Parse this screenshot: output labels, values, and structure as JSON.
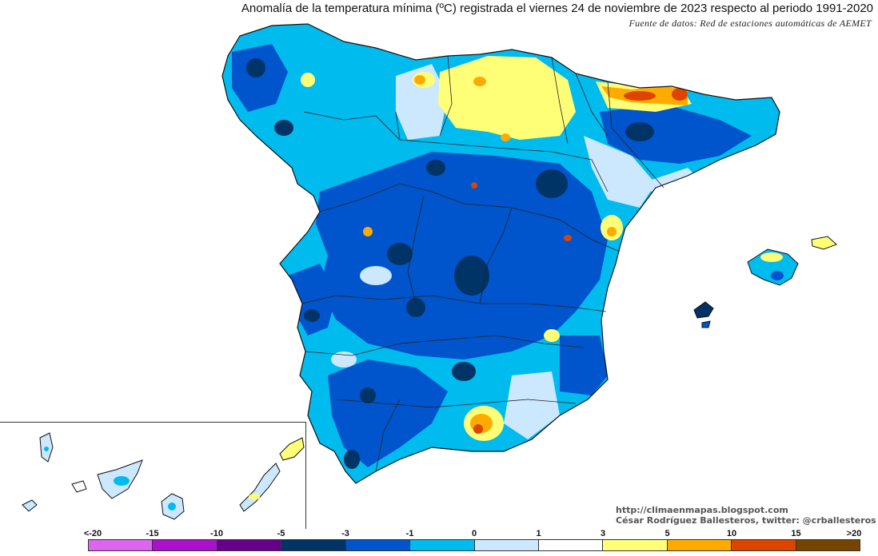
{
  "title": "Anomalía de la temperatura mínima (ºC) registrada el viernes 24 de noviembre de 2023 respecto al periodo 1991-2020",
  "subtitle": "Fuente de datos: Red de estaciones automáticas de AEMET",
  "credits": {
    "url": "http://climaenmapas.blogspot.com",
    "author": "César Rodríguez Ballesteros, twitter: @crballesteros"
  },
  "legend": {
    "labels": [
      "<-20",
      "-15",
      "-10",
      "-5",
      "-3",
      "-1",
      "0",
      "1",
      "3",
      "5",
      "10",
      "15",
      ">20"
    ],
    "colors": [
      "#dd66ee",
      "#aa11cc",
      "#660088",
      "#003366",
      "#0055cc",
      "#00bbee",
      "#cce8ff",
      "#ffffff",
      "#ffff77",
      "#ffaa00",
      "#dd4400",
      "#990000",
      "#774400"
    ]
  },
  "colors": {
    "very_cold": "#003366",
    "cold": "#0055cc",
    "cool": "#00bbee",
    "slightly_cool": "#cce8ff",
    "neutral": "#ffffff",
    "warm": "#ffff77",
    "very_warm": "#ffaa00",
    "hot": "#dd4400"
  }
}
